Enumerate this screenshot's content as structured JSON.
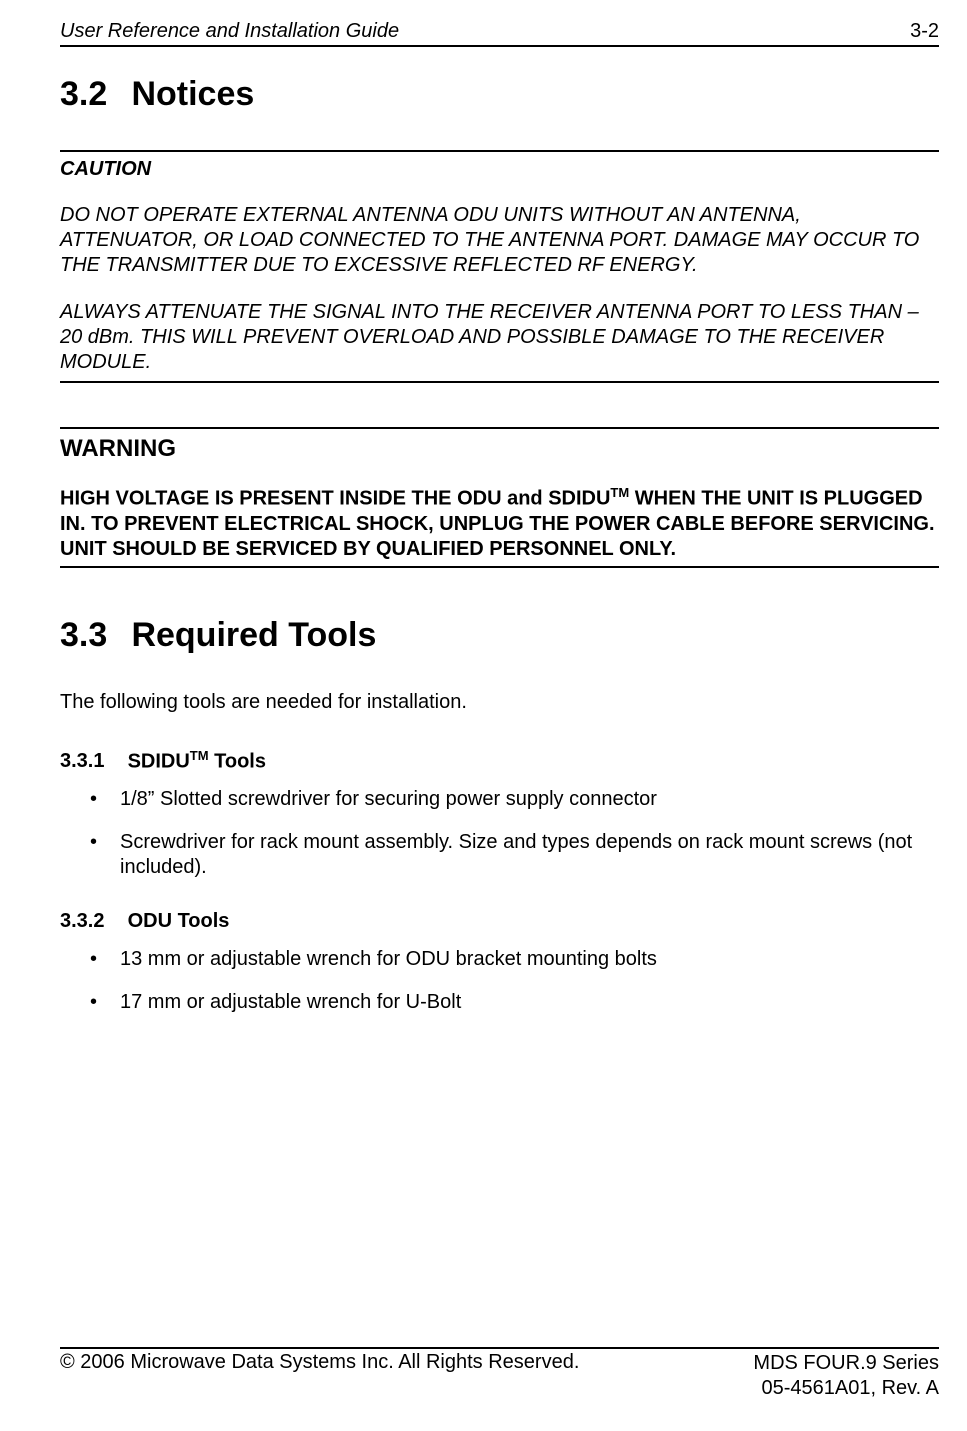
{
  "header": {
    "left": "User Reference and Installation Guide",
    "right": "3-2"
  },
  "section_notices": {
    "number": "3.2",
    "title": "Notices"
  },
  "caution": {
    "title": "CAUTION",
    "para1": "DO NOT OPERATE EXTERNAL ANTENNA ODU UNITS WITHOUT AN ANTENNA, ATTENUATOR, OR LOAD CONNECTED TO THE ANTENNA PORT.  DAMAGE MAY OCCUR TO THE TRANSMITTER DUE TO EXCESSIVE REFLECTED RF ENERGY.",
    "para2": "ALWAYS ATTENUATE THE SIGNAL INTO THE RECEIVER ANTENNA PORT TO LESS THAN –20 dBm.  THIS WILL PREVENT OVERLOAD AND POSSIBLE DAMAGE TO THE RECEIVER MODULE."
  },
  "warning": {
    "title": "WARNING",
    "para_pre": "HIGH VOLTAGE IS PRESENT INSIDE THE ODU and SDIDU",
    "para_sup": "TM",
    "para_post": " WHEN THE UNIT IS PLUGGED IN.  TO PREVENT ELECTRICAL SHOCK, UNPLUG THE POWER CABLE BEFORE SERVICING.  UNIT SHOULD BE SERVICED BY QUALIFIED PERSONNEL ONLY."
  },
  "section_tools": {
    "number": "3.3",
    "title": "Required Tools",
    "intro": "The following tools are needed for installation."
  },
  "sub_sdidu": {
    "number": "3.3.1",
    "title_pre": "SDIDU",
    "title_sup": "TM",
    "title_post": " Tools",
    "items": [
      "1/8” Slotted screwdriver for securing power supply connector",
      "Screwdriver for rack mount assembly.  Size and types depends on rack mount screws (not included)."
    ]
  },
  "sub_odu": {
    "number": "3.3.2",
    "title": "ODU Tools",
    "items": [
      "13 mm or adjustable wrench for ODU bracket mounting bolts",
      "17 mm or adjustable wrench for U-Bolt"
    ]
  },
  "footer": {
    "left": "© 2006 Microwave Data Systems Inc.  All Rights Reserved.",
    "right1": "MDS FOUR.9 Series",
    "right2": "05-4561A01, Rev. A"
  }
}
